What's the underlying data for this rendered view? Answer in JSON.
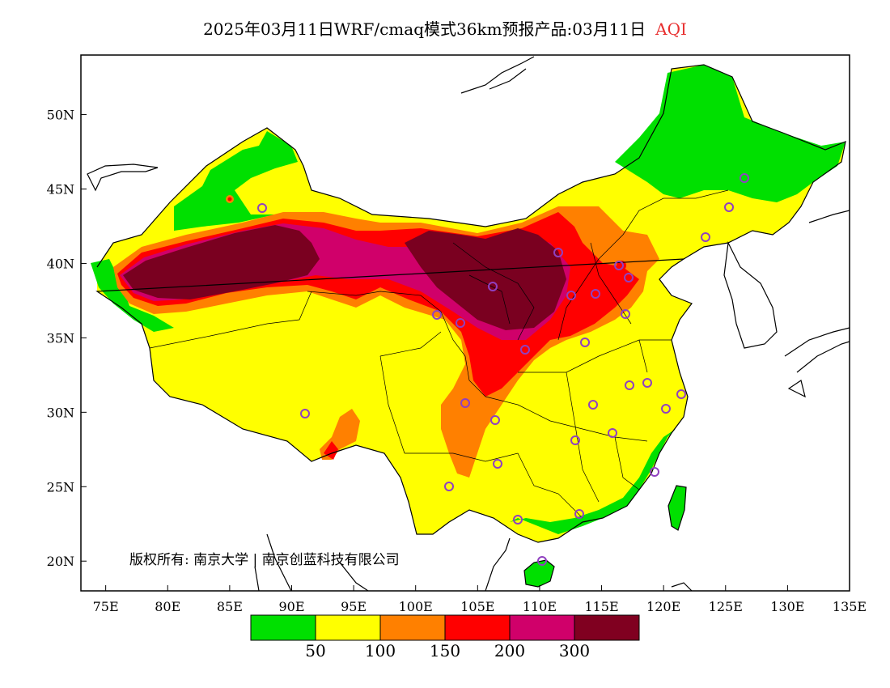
{
  "title": {
    "text": "2025年03月11日WRF/cmaq模式36km预报产品:03月11日",
    "variable": "AQI",
    "variable_color": "#e83030"
  },
  "map": {
    "lon_range": [
      73,
      135
    ],
    "lat_range": [
      18,
      54
    ],
    "lon_ticks": [
      "75E",
      "80E",
      "85E",
      "90E",
      "95E",
      "100E",
      "105E",
      "110E",
      "115E",
      "120E",
      "125E",
      "130E",
      "135E"
    ],
    "lat_ticks": [
      "20N",
      "25N",
      "30N",
      "35N",
      "40N",
      "45N",
      "50N"
    ],
    "copyright": "版权所有: 南京大学 | 南京创蓝科技有限公司"
  },
  "legend": {
    "colors": [
      "#00e000",
      "#ffff00",
      "#ff8000",
      "#ff0000",
      "#d0006a",
      "#800020"
    ],
    "labels": [
      "50",
      "100",
      "150",
      "200",
      "300"
    ]
  }
}
